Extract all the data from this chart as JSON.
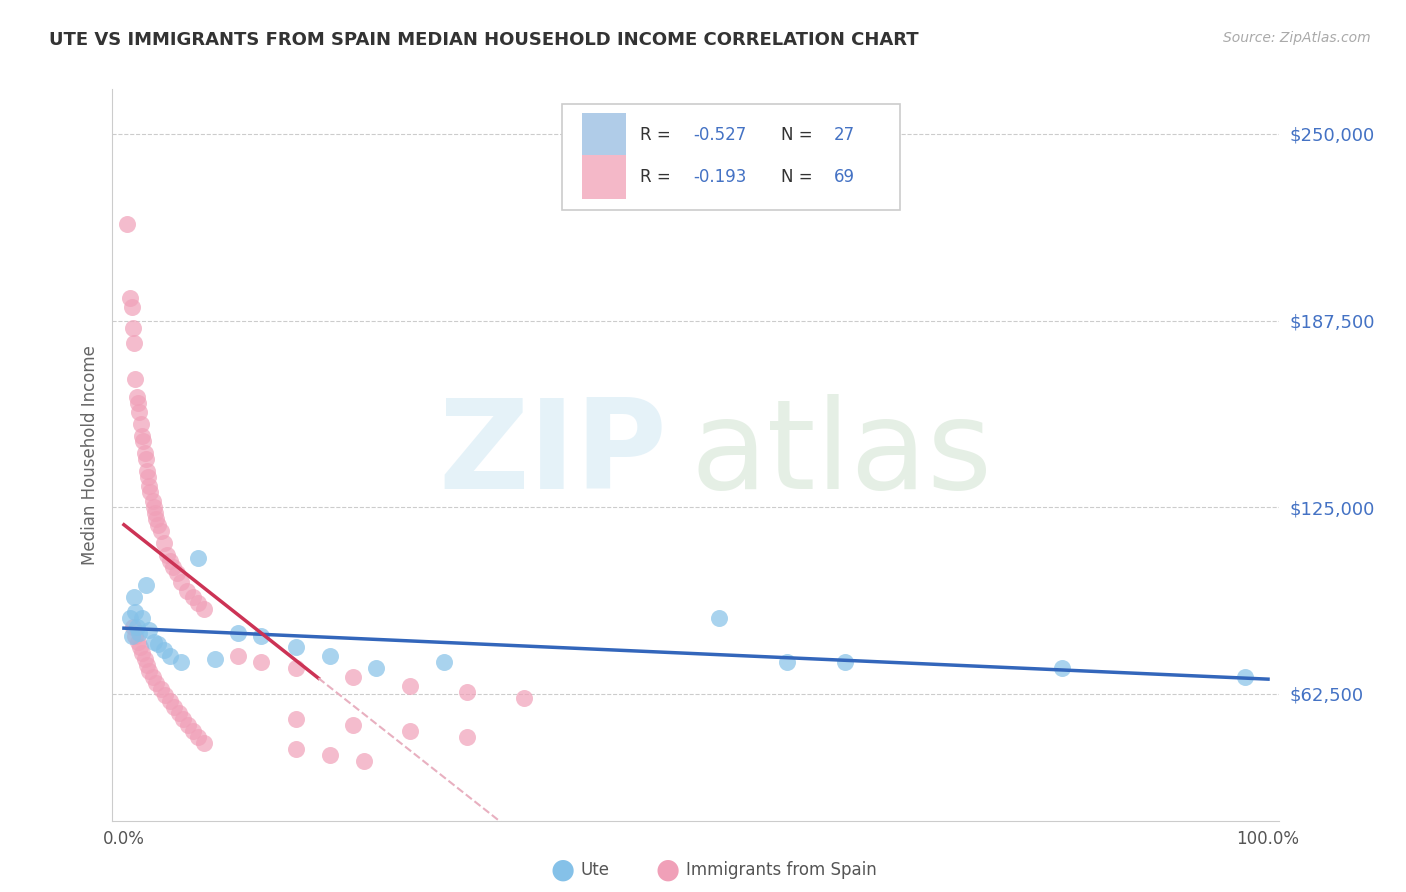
{
  "title": "UTE VS IMMIGRANTS FROM SPAIN MEDIAN HOUSEHOLD INCOME CORRELATION CHART",
  "source": "Source: ZipAtlas.com",
  "ylabel": "Median Household Income",
  "ytick_labels": [
    "$62,500",
    "$125,000",
    "$187,500",
    "$250,000"
  ],
  "ytick_values": [
    62500,
    125000,
    187500,
    250000
  ],
  "ymin": 20000,
  "ymax": 265000,
  "xmin": -0.01,
  "xmax": 1.01,
  "ute_color": "#85c1e8",
  "spain_color": "#f0a0b8",
  "ute_line_color": "#3366bb",
  "spain_line_color": "#cc3355",
  "spain_dash_color": "#e8b0c0",
  "legend_ute_color": "#b0cce8",
  "legend_spain_color": "#f4b8c8",
  "num_color": "#4472c4",
  "ute_x": [
    0.005,
    0.007,
    0.009,
    0.01,
    0.011,
    0.013,
    0.016,
    0.019,
    0.022,
    0.026,
    0.03,
    0.035,
    0.04,
    0.05,
    0.065,
    0.08,
    0.1,
    0.12,
    0.15,
    0.18,
    0.22,
    0.28,
    0.52,
    0.58,
    0.63,
    0.82,
    0.98
  ],
  "ute_y": [
    88000,
    82000,
    95000,
    90000,
    85000,
    83000,
    88000,
    99000,
    84000,
    80000,
    79000,
    77000,
    75000,
    73000,
    108000,
    74000,
    83000,
    82000,
    78000,
    75000,
    71000,
    73000,
    88000,
    73000,
    73000,
    71000,
    68000
  ],
  "spain_x": [
    0.003,
    0.005,
    0.007,
    0.008,
    0.009,
    0.01,
    0.011,
    0.012,
    0.013,
    0.015,
    0.016,
    0.017,
    0.018,
    0.019,
    0.02,
    0.021,
    0.022,
    0.023,
    0.025,
    0.026,
    0.027,
    0.028,
    0.03,
    0.032,
    0.035,
    0.038,
    0.04,
    0.043,
    0.046,
    0.05,
    0.055,
    0.06,
    0.065,
    0.07,
    0.008,
    0.01,
    0.012,
    0.014,
    0.016,
    0.018,
    0.02,
    0.022,
    0.025,
    0.028,
    0.032,
    0.036,
    0.04,
    0.044,
    0.048,
    0.052,
    0.056,
    0.06,
    0.065,
    0.07,
    0.1,
    0.12,
    0.15,
    0.2,
    0.25,
    0.3,
    0.35,
    0.15,
    0.2,
    0.25,
    0.3,
    0.15,
    0.18,
    0.21
  ],
  "spain_y": [
    220000,
    195000,
    192000,
    185000,
    180000,
    168000,
    162000,
    160000,
    157000,
    153000,
    149000,
    147000,
    143000,
    141000,
    137000,
    135000,
    132000,
    130000,
    127000,
    125000,
    123000,
    121000,
    119000,
    117000,
    113000,
    109000,
    107000,
    105000,
    103000,
    100000,
    97000,
    95000,
    93000,
    91000,
    85000,
    82000,
    80000,
    78000,
    76000,
    74000,
    72000,
    70000,
    68000,
    66000,
    64000,
    62000,
    60000,
    58000,
    56000,
    54000,
    52000,
    50000,
    48000,
    46000,
    75000,
    73000,
    71000,
    68000,
    65000,
    63000,
    61000,
    54000,
    52000,
    50000,
    48000,
    44000,
    42000,
    40000
  ]
}
